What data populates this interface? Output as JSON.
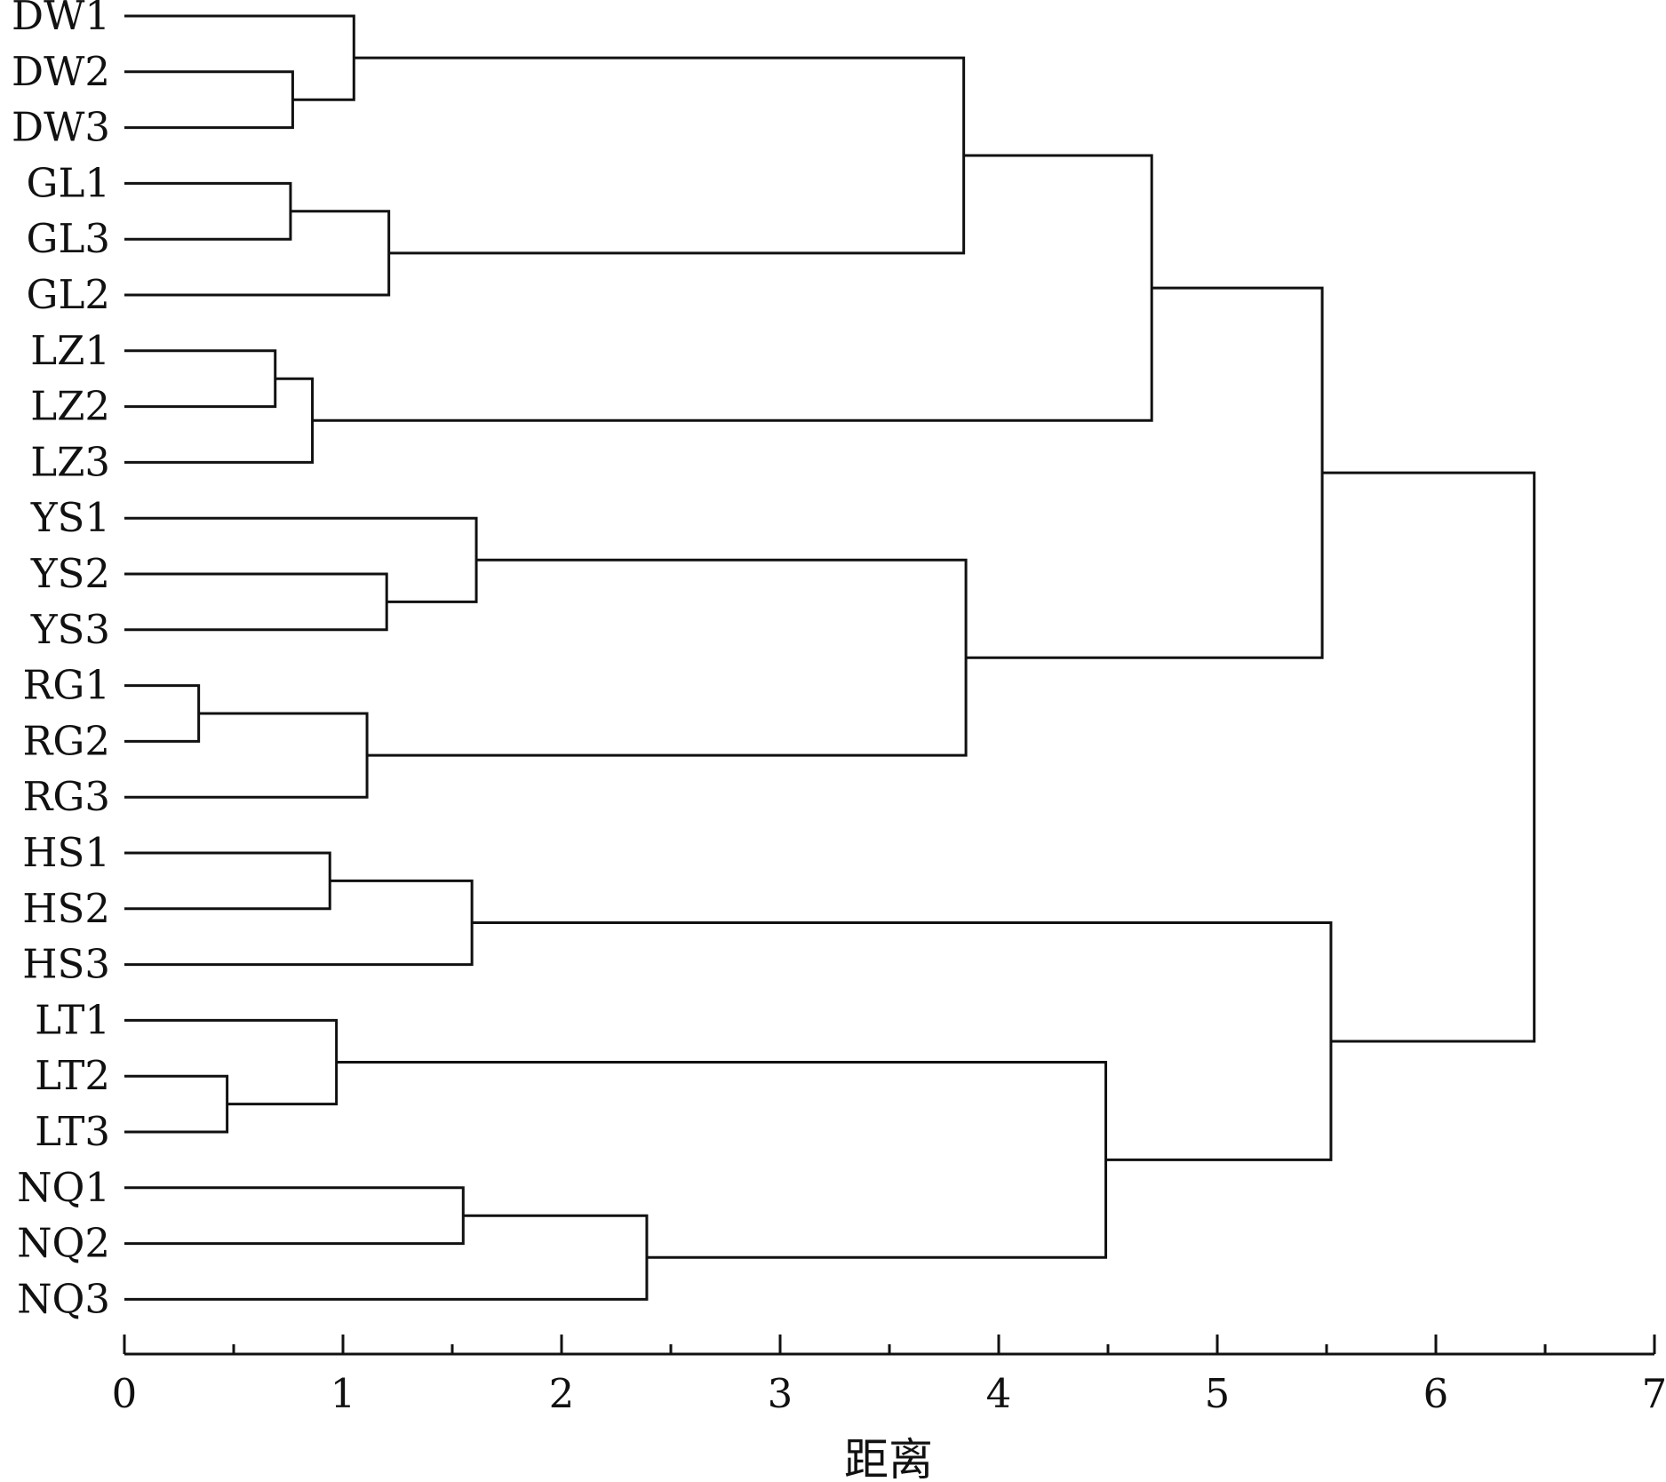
{
  "chart_data": {
    "type": "dendrogram",
    "orientation": "horizontal",
    "xlabel": "距离",
    "xlim": [
      0,
      7
    ],
    "x_ticks": [
      0,
      1,
      2,
      3,
      4,
      5,
      6,
      7
    ],
    "x_minor_step": 0.5,
    "grid": false,
    "legend": "none",
    "leaves": [
      "DW1",
      "DW2",
      "DW3",
      "GL1",
      "GL3",
      "GL2",
      "LZ1",
      "LZ2",
      "LZ3",
      "YS1",
      "YS2",
      "YS3",
      "RG1",
      "RG2",
      "RG3",
      "HS1",
      "HS2",
      "HS3",
      "LT1",
      "LT2",
      "LT3",
      "NQ1",
      "NQ2",
      "NQ3"
    ],
    "merges": [
      {
        "id": "m1",
        "children": [
          "RG1",
          "RG2"
        ],
        "height": 0.34
      },
      {
        "id": "m2",
        "children": [
          "LT2",
          "LT3"
        ],
        "height": 0.47
      },
      {
        "id": "m3",
        "children": [
          "LZ1",
          "LZ2"
        ],
        "height": 0.69
      },
      {
        "id": "m4",
        "children": [
          "GL1",
          "GL3"
        ],
        "height": 0.76
      },
      {
        "id": "m5",
        "children": [
          "DW2",
          "DW3"
        ],
        "height": 0.77
      },
      {
        "id": "m6",
        "children": [
          "m3",
          "LZ3"
        ],
        "height": 0.86
      },
      {
        "id": "m7",
        "children": [
          "HS1",
          "HS2"
        ],
        "height": 0.94
      },
      {
        "id": "m8",
        "children": [
          "LT1",
          "m2"
        ],
        "height": 0.97
      },
      {
        "id": "m9",
        "children": [
          "DW1",
          "m5"
        ],
        "height": 1.05
      },
      {
        "id": "m10",
        "children": [
          "m1",
          "RG3"
        ],
        "height": 1.11
      },
      {
        "id": "m11",
        "children": [
          "YS2",
          "YS3"
        ],
        "height": 1.2
      },
      {
        "id": "m12",
        "children": [
          "m4",
          "GL2"
        ],
        "height": 1.21
      },
      {
        "id": "m13",
        "children": [
          "NQ1",
          "NQ2"
        ],
        "height": 1.55
      },
      {
        "id": "m14",
        "children": [
          "m7",
          "HS3"
        ],
        "height": 1.59
      },
      {
        "id": "m15",
        "children": [
          "YS1",
          "m11"
        ],
        "height": 1.61
      },
      {
        "id": "m16",
        "children": [
          "m13",
          "NQ3"
        ],
        "height": 2.39
      },
      {
        "id": "m17",
        "children": [
          "m9",
          "m12"
        ],
        "height": 3.84
      },
      {
        "id": "m18",
        "children": [
          "m15",
          "m10"
        ],
        "height": 3.85
      },
      {
        "id": "m19",
        "children": [
          "m8",
          "m16"
        ],
        "height": 4.49
      },
      {
        "id": "m20",
        "children": [
          "m17",
          "m6"
        ],
        "height": 4.7
      },
      {
        "id": "m21",
        "children": [
          "m20",
          "m18"
        ],
        "height": 5.48
      },
      {
        "id": "m22",
        "children": [
          "m14",
          "m19"
        ],
        "height": 5.52
      },
      {
        "id": "m23",
        "children": [
          "m21",
          "m22"
        ],
        "height": 6.45
      }
    ]
  }
}
